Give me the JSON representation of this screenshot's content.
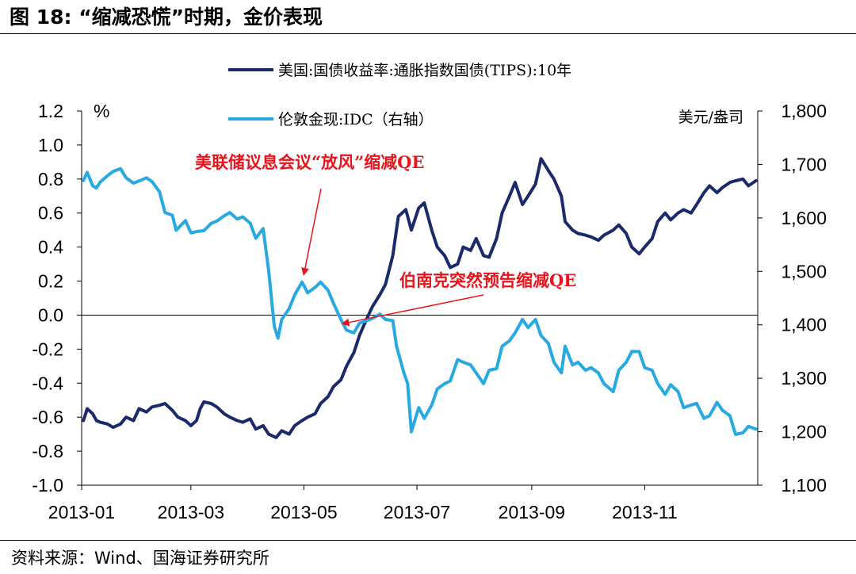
{
  "figure": {
    "title": "图 18: “缩减恐慌”时期，金价表现",
    "source": "资料来源：Wind、国海证券研究所"
  },
  "chart_data": {
    "type": "line",
    "x_ticks": [
      "2013-01",
      "2013-03",
      "2013-05",
      "2013-07",
      "2013-09",
      "2013-11"
    ],
    "left_axis": {
      "unit": "%",
      "ylim": [
        -1.0,
        1.2
      ],
      "ticks": [
        "1.2",
        "1.0",
        "0.8",
        "0.6",
        "0.4",
        "0.2",
        "0.0",
        "-0.2",
        "-0.4",
        "-0.6",
        "-0.8",
        "-1.0"
      ]
    },
    "right_axis": {
      "unit": "美元/盎司",
      "ylim": [
        1100,
        1800
      ],
      "ticks": [
        "1,800",
        "1,700",
        "1,600",
        "1,500",
        "1,400",
        "1,300",
        "1,200",
        "1,100"
      ]
    },
    "zero_line": true,
    "series": [
      {
        "name": "美国:国债收益率:通胀指数国债(TIPS):10年",
        "axis": "left",
        "color": "#1b2a6b",
        "points": [
          [
            "2013-01-02",
            -0.62
          ],
          [
            "2013-01-04",
            -0.55
          ],
          [
            "2013-01-07",
            -0.58
          ],
          [
            "2013-01-09",
            -0.62
          ],
          [
            "2013-01-11",
            -0.63
          ],
          [
            "2013-01-15",
            -0.64
          ],
          [
            "2013-01-18",
            -0.66
          ],
          [
            "2013-01-22",
            -0.64
          ],
          [
            "2013-01-25",
            -0.6
          ],
          [
            "2013-01-29",
            -0.62
          ],
          [
            "2013-02-01",
            -0.55
          ],
          [
            "2013-02-05",
            -0.57
          ],
          [
            "2013-02-08",
            -0.54
          ],
          [
            "2013-02-12",
            -0.53
          ],
          [
            "2013-02-15",
            -0.52
          ],
          [
            "2013-02-19",
            -0.56
          ],
          [
            "2013-02-22",
            -0.6
          ],
          [
            "2013-02-26",
            -0.62
          ],
          [
            "2013-03-01",
            -0.65
          ],
          [
            "2013-03-04",
            -0.62
          ],
          [
            "2013-03-06",
            -0.55
          ],
          [
            "2013-03-08",
            -0.51
          ],
          [
            "2013-03-12",
            -0.52
          ],
          [
            "2013-03-15",
            -0.54
          ],
          [
            "2013-03-19",
            -0.58
          ],
          [
            "2013-03-22",
            -0.6
          ],
          [
            "2013-03-26",
            -0.62
          ],
          [
            "2013-03-29",
            -0.63
          ],
          [
            "2013-04-02",
            -0.61
          ],
          [
            "2013-04-05",
            -0.67
          ],
          [
            "2013-04-09",
            -0.65
          ],
          [
            "2013-04-12",
            -0.7
          ],
          [
            "2013-04-16",
            -0.72
          ],
          [
            "2013-04-19",
            -0.68
          ],
          [
            "2013-04-23",
            -0.7
          ],
          [
            "2013-04-26",
            -0.65
          ],
          [
            "2013-04-30",
            -0.62
          ],
          [
            "2013-05-03",
            -0.6
          ],
          [
            "2013-05-07",
            -0.58
          ],
          [
            "2013-05-10",
            -0.52
          ],
          [
            "2013-05-14",
            -0.48
          ],
          [
            "2013-05-17",
            -0.42
          ],
          [
            "2013-05-21",
            -0.38
          ],
          [
            "2013-05-24",
            -0.3
          ],
          [
            "2013-05-28",
            -0.22
          ],
          [
            "2013-05-31",
            -0.12
          ],
          [
            "2013-06-04",
            -0.02
          ],
          [
            "2013-06-07",
            0.05
          ],
          [
            "2013-06-11",
            0.12
          ],
          [
            "2013-06-14",
            0.18
          ],
          [
            "2013-06-18",
            0.35
          ],
          [
            "2013-06-21",
            0.58
          ],
          [
            "2013-06-25",
            0.62
          ],
          [
            "2013-06-28",
            0.5
          ],
          [
            "2013-07-02",
            0.63
          ],
          [
            "2013-07-05",
            0.66
          ],
          [
            "2013-07-09",
            0.5
          ],
          [
            "2013-07-12",
            0.4
          ],
          [
            "2013-07-16",
            0.35
          ],
          [
            "2013-07-19",
            0.28
          ],
          [
            "2013-07-23",
            0.3
          ],
          [
            "2013-07-26",
            0.4
          ],
          [
            "2013-07-30",
            0.38
          ],
          [
            "2013-08-02",
            0.45
          ],
          [
            "2013-08-06",
            0.35
          ],
          [
            "2013-08-09",
            0.34
          ],
          [
            "2013-08-13",
            0.45
          ],
          [
            "2013-08-16",
            0.6
          ],
          [
            "2013-08-20",
            0.7
          ],
          [
            "2013-08-23",
            0.78
          ],
          [
            "2013-08-27",
            0.65
          ],
          [
            "2013-08-30",
            0.7
          ],
          [
            "2013-09-03",
            0.77
          ],
          [
            "2013-09-06",
            0.92
          ],
          [
            "2013-09-10",
            0.85
          ],
          [
            "2013-09-13",
            0.8
          ],
          [
            "2013-09-17",
            0.7
          ],
          [
            "2013-09-19",
            0.55
          ],
          [
            "2013-09-23",
            0.5
          ],
          [
            "2013-09-26",
            0.48
          ],
          [
            "2013-09-30",
            0.47
          ],
          [
            "2013-10-03",
            0.46
          ],
          [
            "2013-10-07",
            0.44
          ],
          [
            "2013-10-10",
            0.47
          ],
          [
            "2013-10-15",
            0.5
          ],
          [
            "2013-10-18",
            0.53
          ],
          [
            "2013-10-22",
            0.48
          ],
          [
            "2013-10-25",
            0.4
          ],
          [
            "2013-10-29",
            0.36
          ],
          [
            "2013-11-01",
            0.4
          ],
          [
            "2013-11-05",
            0.45
          ],
          [
            "2013-11-08",
            0.55
          ],
          [
            "2013-11-12",
            0.6
          ],
          [
            "2013-11-15",
            0.56
          ],
          [
            "2013-11-19",
            0.6
          ],
          [
            "2013-11-22",
            0.62
          ],
          [
            "2013-11-26",
            0.6
          ],
          [
            "2013-11-29",
            0.65
          ],
          [
            "2013-12-03",
            0.72
          ],
          [
            "2013-12-06",
            0.76
          ],
          [
            "2013-12-10",
            0.72
          ],
          [
            "2013-12-13",
            0.75
          ],
          [
            "2013-12-17",
            0.78
          ],
          [
            "2013-12-20",
            0.79
          ],
          [
            "2013-12-24",
            0.8
          ],
          [
            "2013-12-27",
            0.76
          ],
          [
            "2013-12-31",
            0.79
          ]
        ]
      },
      {
        "name": "伦敦金现:IDC（右轴）",
        "axis": "right",
        "color": "#29a9e1",
        "points": [
          [
            "2013-01-02",
            1670
          ],
          [
            "2013-01-04",
            1685
          ],
          [
            "2013-01-07",
            1660
          ],
          [
            "2013-01-09",
            1656
          ],
          [
            "2013-01-11",
            1667
          ],
          [
            "2013-01-15",
            1679
          ],
          [
            "2013-01-18",
            1687
          ],
          [
            "2013-01-22",
            1692
          ],
          [
            "2013-01-25",
            1675
          ],
          [
            "2013-01-29",
            1665
          ],
          [
            "2013-02-01",
            1669
          ],
          [
            "2013-02-05",
            1675
          ],
          [
            "2013-02-08",
            1668
          ],
          [
            "2013-02-12",
            1649
          ],
          [
            "2013-02-15",
            1610
          ],
          [
            "2013-02-19",
            1605
          ],
          [
            "2013-02-21",
            1577
          ],
          [
            "2013-02-26",
            1595
          ],
          [
            "2013-03-01",
            1572
          ],
          [
            "2013-03-05",
            1575
          ],
          [
            "2013-03-08",
            1576
          ],
          [
            "2013-03-12",
            1590
          ],
          [
            "2013-03-15",
            1594
          ],
          [
            "2013-03-19",
            1604
          ],
          [
            "2013-03-22",
            1610
          ],
          [
            "2013-03-26",
            1598
          ],
          [
            "2013-03-29",
            1602
          ],
          [
            "2013-04-02",
            1590
          ],
          [
            "2013-04-05",
            1562
          ],
          [
            "2013-04-09",
            1580
          ],
          [
            "2013-04-12",
            1501
          ],
          [
            "2013-04-15",
            1398
          ],
          [
            "2013-04-17",
            1375
          ],
          [
            "2013-04-19",
            1410
          ],
          [
            "2013-04-23",
            1430
          ],
          [
            "2013-04-26",
            1456
          ],
          [
            "2013-04-30",
            1480
          ],
          [
            "2013-05-03",
            1460
          ],
          [
            "2013-05-07",
            1470
          ],
          [
            "2013-05-10",
            1480
          ],
          [
            "2013-05-14",
            1465
          ],
          [
            "2013-05-17",
            1440
          ],
          [
            "2013-05-21",
            1410
          ],
          [
            "2013-05-24",
            1390
          ],
          [
            "2013-05-28",
            1385
          ],
          [
            "2013-05-31",
            1403
          ],
          [
            "2013-06-04",
            1408
          ],
          [
            "2013-06-07",
            1412
          ],
          [
            "2013-06-11",
            1420
          ],
          [
            "2013-06-14",
            1410
          ],
          [
            "2013-06-18",
            1408
          ],
          [
            "2013-06-20",
            1360
          ],
          [
            "2013-06-24",
            1310
          ],
          [
            "2013-06-26",
            1290
          ],
          [
            "2013-06-28",
            1200
          ],
          [
            "2013-07-02",
            1245
          ],
          [
            "2013-07-05",
            1225
          ],
          [
            "2013-07-09",
            1250
          ],
          [
            "2013-07-12",
            1280
          ],
          [
            "2013-07-16",
            1290
          ],
          [
            "2013-07-19",
            1295
          ],
          [
            "2013-07-23",
            1335
          ],
          [
            "2013-07-26",
            1330
          ],
          [
            "2013-07-30",
            1325
          ],
          [
            "2013-08-02",
            1310
          ],
          [
            "2013-08-06",
            1290
          ],
          [
            "2013-08-09",
            1315
          ],
          [
            "2013-08-13",
            1318
          ],
          [
            "2013-08-16",
            1360
          ],
          [
            "2013-08-20",
            1370
          ],
          [
            "2013-08-23",
            1385
          ],
          [
            "2013-08-27",
            1410
          ],
          [
            "2013-08-30",
            1395
          ],
          [
            "2013-09-03",
            1410
          ],
          [
            "2013-09-06",
            1380
          ],
          [
            "2013-09-10",
            1365
          ],
          [
            "2013-09-13",
            1330
          ],
          [
            "2013-09-17",
            1310
          ],
          [
            "2013-09-19",
            1360
          ],
          [
            "2013-09-23",
            1325
          ],
          [
            "2013-09-26",
            1330
          ],
          [
            "2013-09-30",
            1315
          ],
          [
            "2013-10-03",
            1320
          ],
          [
            "2013-10-07",
            1310
          ],
          [
            "2013-10-10",
            1290
          ],
          [
            "2013-10-15",
            1275
          ],
          [
            "2013-10-18",
            1315
          ],
          [
            "2013-10-22",
            1330
          ],
          [
            "2013-10-25",
            1350
          ],
          [
            "2013-10-29",
            1350
          ],
          [
            "2013-11-01",
            1320
          ],
          [
            "2013-11-05",
            1315
          ],
          [
            "2013-11-08",
            1290
          ],
          [
            "2013-11-12",
            1270
          ],
          [
            "2013-11-15",
            1288
          ],
          [
            "2013-11-19",
            1275
          ],
          [
            "2013-11-22",
            1245
          ],
          [
            "2013-11-26",
            1250
          ],
          [
            "2013-11-29",
            1253
          ],
          [
            "2013-12-03",
            1225
          ],
          [
            "2013-12-06",
            1230
          ],
          [
            "2013-12-10",
            1255
          ],
          [
            "2013-12-13",
            1240
          ],
          [
            "2013-12-17",
            1230
          ],
          [
            "2013-12-20",
            1195
          ],
          [
            "2013-12-24",
            1198
          ],
          [
            "2013-12-27",
            1210
          ],
          [
            "2013-12-31",
            1205
          ]
        ]
      }
    ],
    "annotations": [
      {
        "text": "美联储议息会议“放风”缩减QE",
        "target_date": "2013-05-01",
        "target_left_value": 0.24,
        "color": "#e8141c"
      },
      {
        "text": "伯南克突然预告缩减QE",
        "target_date": "2013-05-22",
        "target_left_value": -0.05,
        "color": "#e8141c"
      }
    ]
  }
}
